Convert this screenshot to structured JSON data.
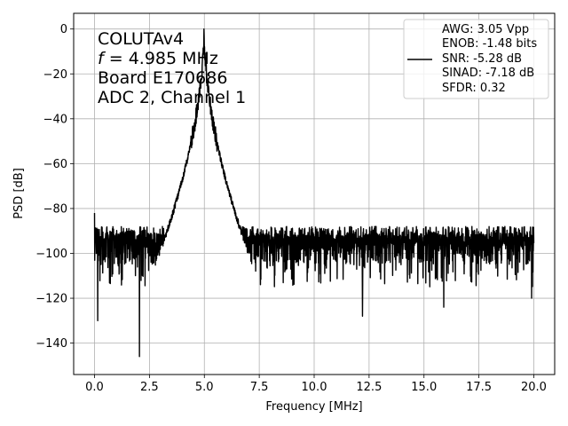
{
  "chart_data": {
    "type": "line",
    "xlabel": "Frequency [MHz]",
    "ylabel": "PSD [dB]",
    "xlim": [
      -0.95,
      20.95
    ],
    "ylim": [
      -154,
      7
    ],
    "grid": true,
    "x_ticks": [
      0.0,
      2.5,
      5.0,
      7.5,
      10.0,
      12.5,
      15.0,
      17.5,
      20.0
    ],
    "x_tick_labels": [
      "0.0",
      "2.5",
      "5.0",
      "7.5",
      "10.0",
      "12.5",
      "15.0",
      "17.5",
      "20.0"
    ],
    "y_ticks": [
      0,
      -20,
      -40,
      -60,
      -80,
      -100,
      -120,
      -140
    ],
    "y_tick_labels": [
      "0",
      "−20",
      "−40",
      "−60",
      "−80",
      "−100",
      "−120",
      "−140"
    ],
    "annotation_lines": [
      {
        "text": "COLUTAv4"
      },
      {
        "prefix": "f",
        "text": " = 4.985 MHz"
      },
      {
        "text": "Board E170686"
      },
      {
        "text": "ADC 2, Channel 1"
      }
    ],
    "legend": {
      "placement": "top-right",
      "lines": [
        "AWG: 3.05 Vpp",
        "ENOB: -1.48 bits",
        "SNR: -5.28 dB",
        "SINAD: -7.18 dB",
        "SFDR: 0.32"
      ]
    },
    "series": [
      {
        "color": "#000000",
        "x_range": [
          0.0,
          20.0
        ],
        "signal_freq": 4.985,
        "peak_db": 0,
        "noise_floor_db": -100,
        "noise_span_db": [
          -115,
          -90
        ],
        "dc_spike_db": -82,
        "notable_dips": [
          {
            "x": 0.15,
            "y": -130
          },
          {
            "x": 2.05,
            "y": -146
          },
          {
            "x": 12.2,
            "y": -128
          },
          {
            "x": 15.9,
            "y": -124
          },
          {
            "x": 19.9,
            "y": -120
          }
        ]
      }
    ]
  }
}
